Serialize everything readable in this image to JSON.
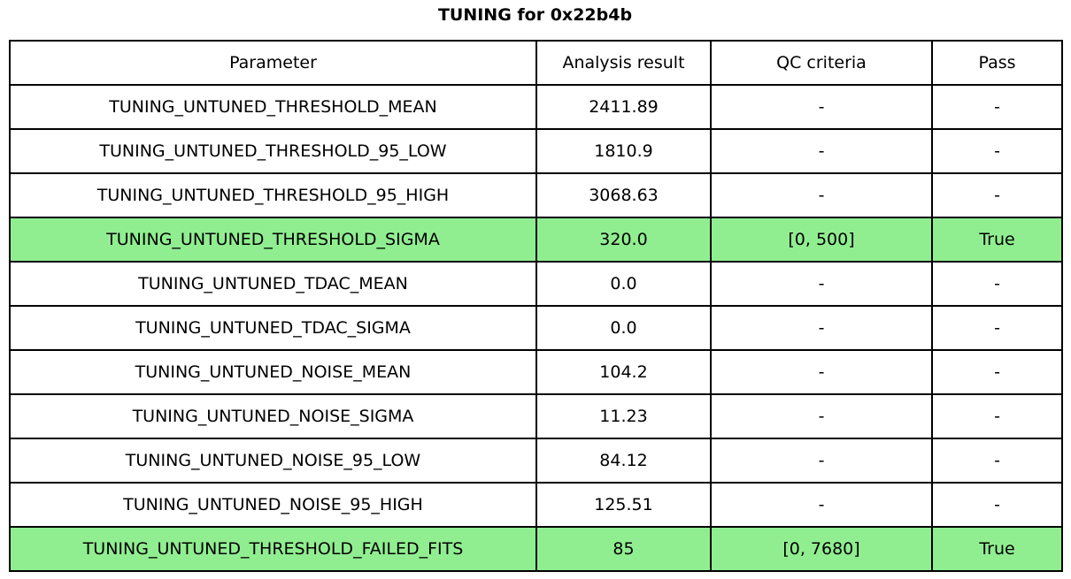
{
  "title": "TUNING for 0x22b4b",
  "table": {
    "headers": {
      "parameter": "Parameter",
      "analysis_result": "Analysis result",
      "qc_criteria": "QC criteria",
      "pass": "Pass"
    },
    "rows": [
      {
        "param": "TUNING_UNTUNED_THRESHOLD_MEAN",
        "result": "2411.89",
        "qc": "-",
        "pass": "-",
        "highlight": false
      },
      {
        "param": "TUNING_UNTUNED_THRESHOLD_95_LOW",
        "result": "1810.9",
        "qc": "-",
        "pass": "-",
        "highlight": false
      },
      {
        "param": "TUNING_UNTUNED_THRESHOLD_95_HIGH",
        "result": "3068.63",
        "qc": "-",
        "pass": "-",
        "highlight": false
      },
      {
        "param": "TUNING_UNTUNED_THRESHOLD_SIGMA",
        "result": "320.0",
        "qc": "[0, 500]",
        "pass": "True",
        "highlight": true
      },
      {
        "param": "TUNING_UNTUNED_TDAC_MEAN",
        "result": "0.0",
        "qc": "-",
        "pass": "-",
        "highlight": false
      },
      {
        "param": "TUNING_UNTUNED_TDAC_SIGMA",
        "result": "0.0",
        "qc": "-",
        "pass": "-",
        "highlight": false
      },
      {
        "param": "TUNING_UNTUNED_NOISE_MEAN",
        "result": "104.2",
        "qc": "-",
        "pass": "-",
        "highlight": false
      },
      {
        "param": "TUNING_UNTUNED_NOISE_SIGMA",
        "result": "11.23",
        "qc": "-",
        "pass": "-",
        "highlight": false
      },
      {
        "param": "TUNING_UNTUNED_NOISE_95_LOW",
        "result": "84.12",
        "qc": "-",
        "pass": "-",
        "highlight": false
      },
      {
        "param": "TUNING_UNTUNED_NOISE_95_HIGH",
        "result": "125.51",
        "qc": "-",
        "pass": "-",
        "highlight": false
      },
      {
        "param": "TUNING_UNTUNED_THRESHOLD_FAILED_FITS",
        "result": "85",
        "qc": "[0, 7680]",
        "pass": "True",
        "highlight": true
      }
    ]
  },
  "colors": {
    "highlight_green": "#90EE90",
    "border": "#000000",
    "background": "#ffffff",
    "text": "#000000"
  },
  "chart_data": {
    "type": "table",
    "title": "TUNING for 0x22b4b",
    "columns": [
      "Parameter",
      "Analysis result",
      "QC criteria",
      "Pass"
    ],
    "cells": [
      [
        "TUNING_UNTUNED_THRESHOLD_MEAN",
        "2411.89",
        "-",
        "-"
      ],
      [
        "TUNING_UNTUNED_THRESHOLD_95_LOW",
        "1810.9",
        "-",
        "-"
      ],
      [
        "TUNING_UNTUNED_THRESHOLD_95_HIGH",
        "3068.63",
        "-",
        "-"
      ],
      [
        "TUNING_UNTUNED_THRESHOLD_SIGMA",
        "320.0",
        "[0, 500]",
        "True"
      ],
      [
        "TUNING_UNTUNED_TDAC_MEAN",
        "0.0",
        "-",
        "-"
      ],
      [
        "TUNING_UNTUNED_TDAC_SIGMA",
        "0.0",
        "-",
        "-"
      ],
      [
        "TUNING_UNTUNED_NOISE_MEAN",
        "104.2",
        "-",
        "-"
      ],
      [
        "TUNING_UNTUNED_NOISE_SIGMA",
        "11.23",
        "-",
        "-"
      ],
      [
        "TUNING_UNTUNED_NOISE_95_LOW",
        "84.12",
        "-",
        "-"
      ],
      [
        "TUNING_UNTUNED_NOISE_95_HIGH",
        "125.51",
        "-",
        "-"
      ],
      [
        "TUNING_UNTUNED_THRESHOLD_FAILED_FITS",
        "85",
        "[0, 7680]",
        "True"
      ]
    ],
    "highlighted_row_indices": [
      3,
      10
    ]
  }
}
